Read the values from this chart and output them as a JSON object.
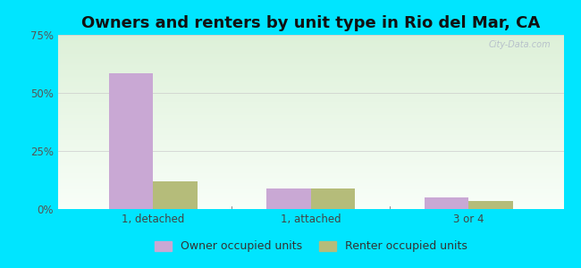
{
  "title": "Owners and renters by unit type in Rio del Mar, CA",
  "categories": [
    "1, detached",
    "1, attached",
    "3 or 4"
  ],
  "owner_values": [
    58.5,
    9.0,
    5.0
  ],
  "renter_values": [
    12.0,
    9.0,
    3.5
  ],
  "owner_color": "#c9a8d4",
  "renter_color": "#b5bc7a",
  "ylim": [
    0,
    75
  ],
  "yticks": [
    0,
    25,
    50,
    75
  ],
  "ytick_labels": [
    "0%",
    "25%",
    "50%",
    "75%"
  ],
  "bar_width": 0.28,
  "grad_top_color": "#ddf0d8",
  "grad_bottom_color": "#f8fef8",
  "outer_bg": "#00e5ff",
  "watermark": "City-Data.com",
  "legend_owner": "Owner occupied units",
  "legend_renter": "Renter occupied units",
  "title_fontsize": 13,
  "axis_fontsize": 8.5,
  "legend_fontsize": 9
}
